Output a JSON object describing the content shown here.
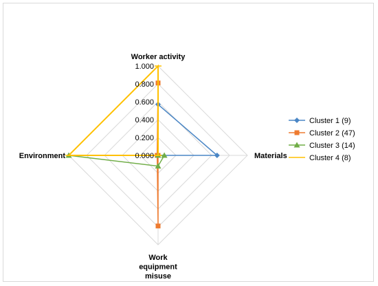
{
  "chart_data": {
    "type": "radar",
    "axes": [
      "Worker activity",
      "Materials",
      "Work equipment misuse",
      "Environment"
    ],
    "axis_label_lines": [
      [
        "Worker activity"
      ],
      [
        "Materials"
      ],
      [
        "Work",
        "equipment",
        "misuse"
      ],
      [
        "Environment"
      ]
    ],
    "rlim": [
      0,
      1
    ],
    "ticks": [
      0,
      0.2,
      0.4,
      0.6,
      0.8,
      1.0
    ],
    "tick_labels": [
      "0.000",
      "0.200",
      "0.400",
      "0.600",
      "0.800",
      "1.000"
    ],
    "grid": true,
    "legend_position": "right",
    "series": [
      {
        "name": "Cluster 1 (9)",
        "color": "#4a86c5",
        "marker": "diamond",
        "values": [
          0.57,
          0.66,
          0.0,
          0.0
        ]
      },
      {
        "name": "Cluster 2 (47)",
        "color": "#ee7b30",
        "marker": "square",
        "values": [
          0.81,
          0.0,
          0.79,
          0.01
        ]
      },
      {
        "name": "Cluster 3 (14)",
        "color": "#70ad47",
        "marker": "triangle",
        "values": [
          0.0,
          0.07,
          0.12,
          1.0
        ]
      },
      {
        "name": "Cluster 4 (8)",
        "color": "#ffc000",
        "marker": "line",
        "values": [
          1.0,
          0.0,
          0.0,
          1.0
        ]
      }
    ]
  }
}
